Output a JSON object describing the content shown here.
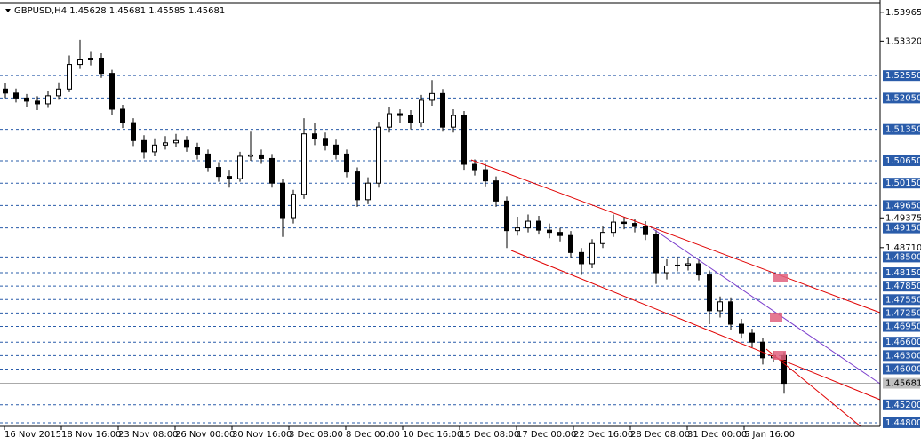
{
  "chart_data": {
    "type": "candlestick",
    "title": "GBPUSD,H4  1.45628 1.45681 1.45585 1.45681",
    "open": [
      1.5225,
      1.5216,
      1.5205,
      1.5198,
      1.5192,
      1.521,
      1.5225,
      1.528,
      1.5292,
      1.5294,
      1.526,
      1.518,
      1.515,
      1.511,
      1.5085,
      1.51,
      1.5105,
      1.511,
      1.5095,
      1.508,
      1.505,
      1.503,
      1.5025,
      1.5075,
      1.5078,
      1.507,
      1.5015,
      1.4938,
      1.499,
      1.5125,
      1.5115,
      1.51,
      1.508,
      1.504,
      1.4978,
      1.5015,
      1.514,
      1.517,
      1.5166,
      1.515,
      1.52,
      1.5215,
      1.514,
      1.5166,
      1.5057,
      1.5045,
      1.502,
      1.4975,
      1.4909,
      1.4915,
      1.493,
      1.491,
      1.4905,
      1.4898,
      1.486,
      1.4835,
      1.488,
      1.4905,
      1.4928,
      1.4925,
      1.4918,
      1.49,
      1.4815,
      1.483,
      1.4832,
      1.4835,
      1.481,
      1.473,
      1.475,
      1.47,
      1.468,
      1.466,
      1.4625,
      1.463
    ],
    "high": [
      1.5238,
      1.5226,
      1.5214,
      1.5209,
      1.5221,
      1.524,
      1.53,
      1.5335,
      1.531,
      1.5305,
      1.5268,
      1.519,
      1.516,
      1.5122,
      1.5115,
      1.512,
      1.5125,
      1.512,
      1.5105,
      1.509,
      1.5062,
      1.5045,
      1.5085,
      1.513,
      1.509,
      1.508,
      1.5025,
      1.5,
      1.516,
      1.515,
      1.5128,
      1.5112,
      1.509,
      1.505,
      1.5028,
      1.5152,
      1.5185,
      1.518,
      1.5178,
      1.5212,
      1.5245,
      1.5225,
      1.518,
      1.5176,
      1.5068,
      1.5058,
      1.503,
      1.4985,
      1.494,
      1.4945,
      1.4942,
      1.4925,
      1.4915,
      1.4908,
      1.487,
      1.489,
      1.4918,
      1.4945,
      1.494,
      1.4935,
      1.493,
      1.491,
      1.4845,
      1.485,
      1.4848,
      1.4845,
      1.482,
      1.4762,
      1.476,
      1.4712,
      1.469,
      1.467,
      1.464,
      1.4638
    ],
    "low": [
      1.5205,
      1.5195,
      1.5186,
      1.5178,
      1.5183,
      1.5201,
      1.5218,
      1.527,
      1.5278,
      1.525,
      1.5168,
      1.5138,
      1.5098,
      1.507,
      1.5075,
      1.509,
      1.5095,
      1.5085,
      1.5068,
      1.504,
      1.5018,
      1.5005,
      1.5018,
      1.5065,
      1.5058,
      1.5005,
      1.4895,
      1.4925,
      1.498,
      1.51,
      1.5088,
      1.5068,
      1.5028,
      1.4962,
      1.4968,
      1.5005,
      1.5128,
      1.515,
      1.5135,
      1.514,
      1.5188,
      1.513,
      1.5128,
      1.5045,
      1.5032,
      1.5008,
      1.4962,
      1.487,
      1.4898,
      1.4905,
      1.49,
      1.4892,
      1.4885,
      1.4848,
      1.481,
      1.4825,
      1.487,
      1.4895,
      1.4912,
      1.4905,
      1.4888,
      1.479,
      1.48,
      1.4818,
      1.482,
      1.4798,
      1.47,
      1.4715,
      1.4688,
      1.4668,
      1.4648,
      1.461,
      1.4615,
      1.4545
    ],
    "close": [
      1.5216,
      1.5205,
      1.5198,
      1.5192,
      1.521,
      1.5225,
      1.528,
      1.5292,
      1.5294,
      1.526,
      1.518,
      1.515,
      1.511,
      1.5085,
      1.51,
      1.5105,
      1.511,
      1.5095,
      1.508,
      1.505,
      1.503,
      1.5025,
      1.5075,
      1.5078,
      1.507,
      1.5015,
      1.4938,
      1.499,
      1.5125,
      1.5115,
      1.51,
      1.508,
      1.504,
      1.4978,
      1.5015,
      1.514,
      1.517,
      1.5166,
      1.515,
      1.52,
      1.5215,
      1.514,
      1.5166,
      1.5057,
      1.5045,
      1.502,
      1.4975,
      1.4909,
      1.4915,
      1.493,
      1.491,
      1.4905,
      1.4898,
      1.486,
      1.4835,
      1.488,
      1.4905,
      1.4928,
      1.4925,
      1.4918,
      1.49,
      1.4815,
      1.483,
      1.4832,
      1.4835,
      1.481,
      1.473,
      1.475,
      1.47,
      1.468,
      1.466,
      1.4625,
      1.463,
      1.4568
    ],
    "xtick_labels": [
      "16 Nov 2015",
      "18 Nov 16:00",
      "23 Nov 08:00",
      "26 Nov 00:00",
      "30 Nov 16:00",
      "3 Dec 08:00",
      "8 Dec 00:00",
      "10 Dec 16:00",
      "15 Dec 08:00",
      "17 Dec 00:00",
      "22 Dec 16:00",
      "28 Dec 08:00",
      "31 Dec 00:00",
      "5 Jan 16:00"
    ],
    "ylim": [
      1.4472,
      1.5414
    ],
    "yticks": [
      {
        "value": 1.53965,
        "label": "1.53965"
      },
      {
        "value": 1.5332,
        "label": "1.53320"
      },
      {
        "value": 1.49375,
        "label": "1.49375"
      },
      {
        "value": 1.4871,
        "label": "1.48710"
      }
    ],
    "levels": [
      {
        "value": 1.5255,
        "label": "1.52550"
      },
      {
        "value": 1.5205,
        "label": "1.52050"
      },
      {
        "value": 1.5135,
        "label": "1.51350"
      },
      {
        "value": 1.5065,
        "label": "1.50650"
      },
      {
        "value": 1.5015,
        "label": "1.50150"
      },
      {
        "value": 1.4965,
        "label": "1.49650"
      },
      {
        "value": 1.4915,
        "label": "1.49150"
      },
      {
        "value": 1.485,
        "label": "1.48500"
      },
      {
        "value": 1.4815,
        "label": "1.48150"
      },
      {
        "value": 1.4785,
        "label": "1.47850"
      },
      {
        "value": 1.4755,
        "label": "1.47550"
      },
      {
        "value": 1.4725,
        "label": "1.47250"
      },
      {
        "value": 1.4695,
        "label": "1.46950"
      },
      {
        "value": 1.466,
        "label": "1.46600"
      },
      {
        "value": 1.463,
        "label": "1.46300"
      },
      {
        "value": 1.46,
        "label": "1.46000"
      },
      {
        "value": 1.452,
        "label": "1.45200"
      },
      {
        "value": 1.448,
        "label": "1.44800"
      }
    ],
    "price": {
      "value": 1.45681,
      "label": "1.45681"
    },
    "level_color": "#2a5caa"
  }
}
